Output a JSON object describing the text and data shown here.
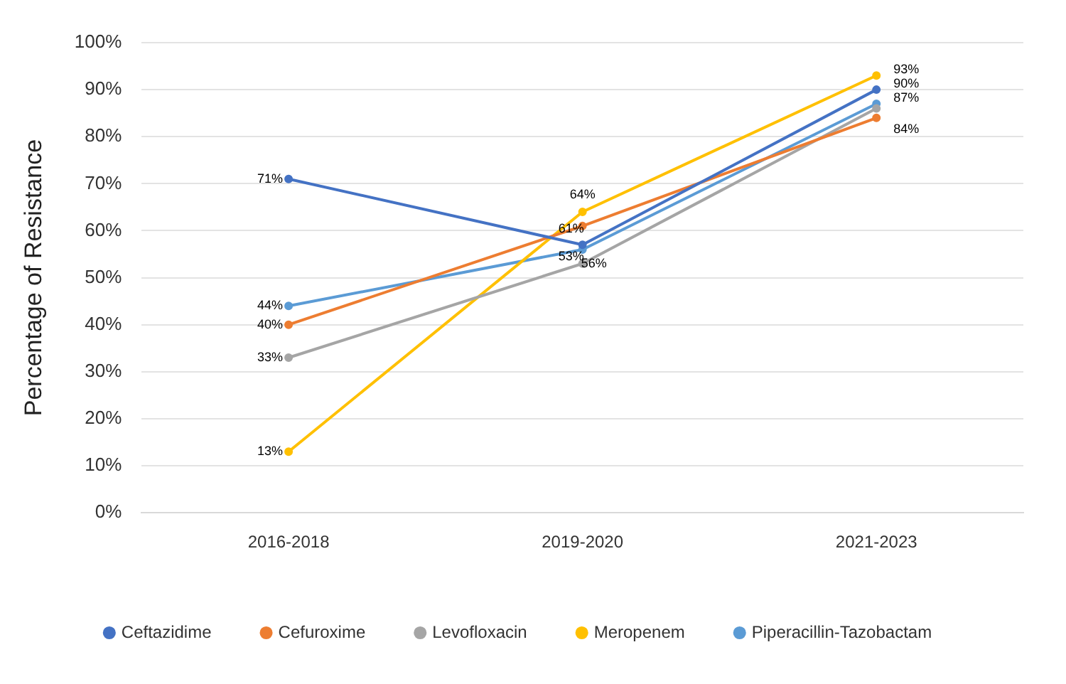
{
  "chart_data": {
    "type": "line",
    "ylabel": "Percentage of Resistance",
    "categories": [
      "2016-2018",
      "2019-2020",
      "2021-2023"
    ],
    "ylim": [
      0,
      100
    ],
    "yticks": [
      {
        "value": 0,
        "label": "0%"
      },
      {
        "value": 10,
        "label": "10%"
      },
      {
        "value": 20,
        "label": "20%"
      },
      {
        "value": 30,
        "label": "30%"
      },
      {
        "value": 40,
        "label": "40%"
      },
      {
        "value": 50,
        "label": "50%"
      },
      {
        "value": 60,
        "label": "60%"
      },
      {
        "value": 70,
        "label": "70%"
      },
      {
        "value": 80,
        "label": "80%"
      },
      {
        "value": 90,
        "label": "90%"
      },
      {
        "value": 100,
        "label": "100%"
      }
    ],
    "grid": "y",
    "legend": "bottom",
    "marker": "circle",
    "line_style": "solid",
    "series": [
      {
        "name": "Ceftazidime",
        "color": "#4472c4",
        "values": [
          71,
          57,
          90
        ],
        "value_labels": [
          "71%",
          null,
          "90%"
        ]
      },
      {
        "name": "Cefuroxime",
        "color": "#ed7d31",
        "values": [
          40,
          61,
          84
        ],
        "value_labels": [
          "40%",
          "61%",
          "84%"
        ]
      },
      {
        "name": "Levofloxacin",
        "color": "#a5a5a5",
        "values": [
          33,
          53,
          86
        ],
        "value_labels": [
          "33%",
          "53%",
          null
        ]
      },
      {
        "name": "Meropenem",
        "color": "#ffc000",
        "values": [
          13,
          64,
          93
        ],
        "value_labels": [
          "13%",
          "64%",
          "93%"
        ]
      },
      {
        "name": "Piperacillin-Tazobactam",
        "color": "#5b9bd5",
        "values": [
          44,
          56,
          87
        ],
        "value_labels": [
          "44%",
          "56%",
          "87%"
        ]
      }
    ]
  }
}
